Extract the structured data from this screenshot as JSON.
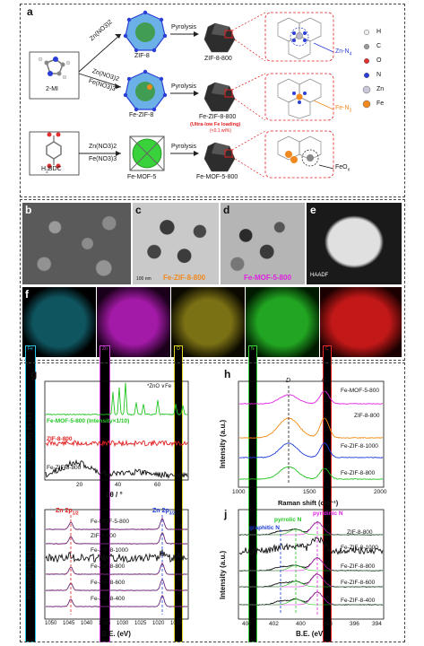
{
  "panel_a": {
    "label": "a",
    "precursor_mi": "2-MI",
    "precursor_bdc": "H",
    "precursor_bdc_sub": "2",
    "precursor_bdc_tail": "BDC",
    "route1_reagent": "Zn(NO3)2",
    "route2_reagent_1": "Zn(NO3)2",
    "route2_reagent_2": "Fe(NO3)3",
    "route3_reagent_1": "Zn(NO3)2",
    "route3_reagent_2": "Fe(NO3)3",
    "mof1": "ZIF-8",
    "mof2": "Fe-ZIF-8",
    "mof3": "Fe-MOF-5",
    "step_label": "Pyrolysis",
    "prod1": "ZIF-8-800",
    "prod2": "Fe-ZIF-8-800",
    "prod2_note": "(Ultra-low Fe loading)",
    "prod2_note2": "(<0.1 wt%)",
    "prod3": "Fe-MOF-5-800",
    "site1": "Zn-N",
    "site1_sub": "4",
    "site2": "Fe-N",
    "site2_sub": "3",
    "site3": "FeO",
    "site3_sub": "x",
    "legend": [
      {
        "symbol": "H",
        "color": "#eeeeee"
      },
      {
        "symbol": "C",
        "color": "#9a9a9a"
      },
      {
        "symbol": "O",
        "color": "#e03030"
      },
      {
        "symbol": "N",
        "color": "#2b3fd6"
      },
      {
        "symbol": "Zn",
        "color": "#c8c8d8"
      },
      {
        "symbol": "Fe",
        "color": "#f08a20"
      }
    ]
  },
  "panel_micro": {
    "b": "b",
    "c": "c",
    "d": "d",
    "e": "e",
    "c_caption": "Fe-ZIF-8-800",
    "d_caption": "Fe-MOF-5-800",
    "scale_c": "100 nm",
    "haadf": "HAADF"
  },
  "panel_f": {
    "label": "f",
    "maps": [
      {
        "el": "Fe",
        "color": "#2ec4e8"
      },
      {
        "el": "Zn",
        "color": "#d23cd8"
      },
      {
        "el": "O",
        "color": "#e8d82a"
      },
      {
        "el": "N",
        "color": "#3ad23a"
      },
      {
        "el": "C",
        "color": "#e82828"
      }
    ]
  },
  "panel_g": {
    "label": "g",
    "legend": "*ZnO  ∨Fe",
    "series": [
      "Fe-MOF-5-800 (Intensity×1/10)",
      "ZIF-8-800",
      "Fe-ZIF-8-800"
    ],
    "series_colors": [
      "#22c422",
      "#e02020",
      "#111111"
    ],
    "xlabel": "2θ / °",
    "ylabel": "Intensity (a.u.)",
    "ticks": [
      "20",
      "40",
      "60"
    ]
  },
  "panel_h": {
    "label": "h",
    "peak_d": "D",
    "peak_g": "G",
    "series": [
      "Fe-MOF-5-800",
      "ZIF-8-800",
      "Fe-ZIF-8-1000",
      "Fe-ZIF-8-800"
    ],
    "series_colors": [
      "#e020e0",
      "#f08a10",
      "#1a3ad8",
      "#22c422"
    ],
    "xlabel": "Raman shift (cm⁻¹)",
    "ylabel": "Intensity (a.u.)",
    "ticks": [
      "1000",
      "1500",
      "2000"
    ]
  },
  "panel_i": {
    "label": "i",
    "peak1": "Zn 2p",
    "peak1_sub": "1/2",
    "peak2": "Zn 2p",
    "peak2_sub": "3/2",
    "series": [
      "Fe-MOF-5-800",
      "ZIF-8-800",
      "Fe-ZIF-8-1000",
      "Fe-ZIF-8-800",
      "Fe-ZIF-8-600",
      "Fe-ZIF-8-400"
    ],
    "xlabel": "B.E. (eV)",
    "ylabel": "Intensity (a.u.)",
    "ticks": [
      "1050",
      "1045",
      "1040",
      "1035",
      "1030",
      "1025",
      "1020",
      "1015"
    ]
  },
  "panel_j": {
    "label": "j",
    "peak_graphitic": "graphitic N",
    "peak_pyrrolic": "pyrrolic N",
    "peak_pyridinic": "pyridinic N",
    "series": [
      "ZIF-8-800",
      "Fe-ZIF-8-1000",
      "Fe-ZIF-8-800",
      "Fe-ZIF-8-600",
      "Fe-ZIF-8-400"
    ],
    "xlabel": "B.E. (eV)",
    "ylabel": "Intensity (a.u.)",
    "ticks": [
      "404",
      "402",
      "400",
      "398",
      "396",
      "394"
    ]
  }
}
